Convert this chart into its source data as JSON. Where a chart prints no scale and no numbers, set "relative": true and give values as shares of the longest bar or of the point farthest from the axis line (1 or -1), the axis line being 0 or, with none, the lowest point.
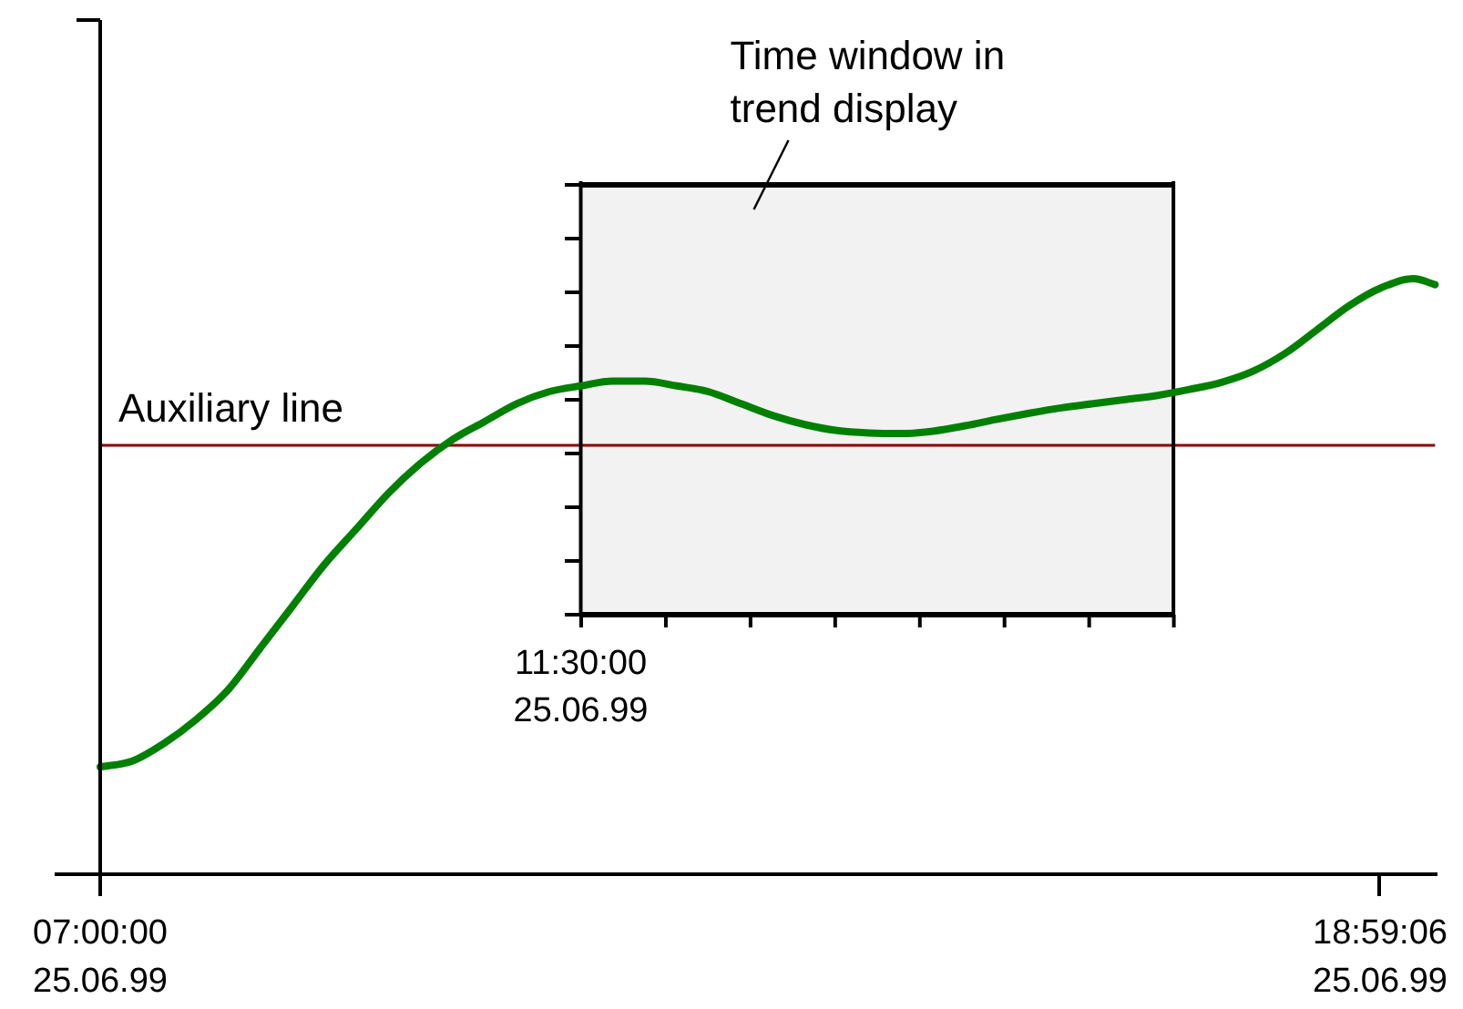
{
  "chart_data": {
    "type": "line",
    "relative": true,
    "x": [
      "1999-06-25T07:00",
      "1999-06-25T07:18",
      "1999-06-25T07:36",
      "1999-06-25T07:54",
      "1999-06-25T08:12",
      "1999-06-25T08:30",
      "1999-06-25T08:48",
      "1999-06-25T09:06",
      "1999-06-25T09:24",
      "1999-06-25T09:42",
      "1999-06-25T10:00",
      "1999-06-25T10:18",
      "1999-06-25T10:36",
      "1999-06-25T10:54",
      "1999-06-25T11:12",
      "1999-06-25T11:30",
      "1999-06-25T11:48",
      "1999-06-25T12:06",
      "1999-06-25T12:24",
      "1999-06-25T12:42",
      "1999-06-25T13:00",
      "1999-06-25T13:18",
      "1999-06-25T13:36",
      "1999-06-25T13:54",
      "1999-06-25T14:12",
      "1999-06-25T14:30",
      "1999-06-25T14:48",
      "1999-06-25T15:06",
      "1999-06-25T15:24",
      "1999-06-25T15:42",
      "1999-06-25T16:00",
      "1999-06-25T16:18",
      "1999-06-25T16:36",
      "1999-06-25T16:54",
      "1999-06-25T17:12",
      "1999-06-25T17:30",
      "1999-06-25T17:48",
      "1999-06-25T18:06",
      "1999-06-25T18:24",
      "1999-06-25T18:42",
      "1999-06-25T19:00",
      "1999-06-25T19:18",
      "1999-06-25T19:30"
    ],
    "series": [
      {
        "color": "#008000",
        "values": [
          0.18,
          0.19,
          0.22,
          0.26,
          0.31,
          0.38,
          0.45,
          0.52,
          0.58,
          0.64,
          0.69,
          0.73,
          0.76,
          0.79,
          0.81,
          0.82,
          0.828,
          0.828,
          0.82,
          0.81,
          0.79,
          0.77,
          0.755,
          0.745,
          0.741,
          0.74,
          0.744,
          0.753,
          0.764,
          0.774,
          0.783,
          0.79,
          0.797,
          0.804,
          0.814,
          0.826,
          0.845,
          0.875,
          0.915,
          0.955,
          0.985,
          1.0,
          0.99
        ]
      }
    ],
    "xlim": [
      "1999-06-25T07:00",
      "1999-06-25T19:30"
    ],
    "xticks": [
      {
        "value": "1999-06-25T07:00:00",
        "label": "07:00:00\n25.06.99"
      },
      {
        "value": "1999-06-25T18:59:06",
        "label": "18:59:06\n25.06.99"
      }
    ],
    "ref_lines": [
      {
        "axis": "y",
        "value": 0.72,
        "label": "Auxiliary line",
        "color": "#8b0000"
      },
      {
        "axis": "x",
        "value": "1999-06-25T11:30",
        "color": "#000000"
      },
      {
        "axis": "x",
        "value": "1999-06-25T17:03",
        "color": "#000000"
      }
    ],
    "bands": [
      {
        "axis": "x",
        "from": "1999-06-25T11:30",
        "to": "1999-06-25T17:03",
        "label": "Time window in\ntrend display",
        "color": "#000000"
      }
    ],
    "annotations": [
      "11:30:00\n25.06.99"
    ],
    "grid": false,
    "legend": false,
    "marker": "none",
    "tick_labels": "x"
  }
}
